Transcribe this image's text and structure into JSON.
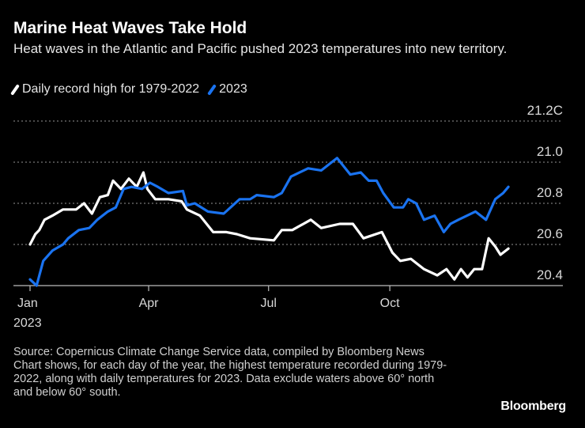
{
  "header": {
    "title": "Marine Heat Waves Take Hold",
    "subtitle": "Heat waves in the Atlantic and Pacific pushed 2023 temperatures into new territory."
  },
  "footer": {
    "source": "Source: Copernicus Climate Change Service data, compiled by Bloomberg News",
    "note": "Chart shows, for each day of the year, the highest temperature recorded during 1979-2022, along with daily temperatures for 2023. Data exclude waters above 60° north and below 60° south.",
    "logo": "Bloomberg"
  },
  "colors": {
    "background": "#000000",
    "record": "#ffffff",
    "year2023": "#1a73f0",
    "grid": "#777777"
  },
  "chart_data": {
    "type": "line",
    "title": "Marine Heat Waves Take Hold",
    "xlabel": "",
    "ylabel": "",
    "xlim": [
      "2023-01-01",
      "2023-12-31"
    ],
    "ylim": [
      20.4,
      21.2
    ],
    "grid": true,
    "legend_position": "top-left",
    "x_ticks": [
      {
        "date": "2023-01-01",
        "label": "Jan",
        "sublabel": "2023"
      },
      {
        "date": "2023-04-01",
        "label": "Apr"
      },
      {
        "date": "2023-07-01",
        "label": "Jul"
      },
      {
        "date": "2023-10-01",
        "label": "Oct"
      }
    ],
    "y_ticks": [
      {
        "value": 20.4,
        "label": "20.4"
      },
      {
        "value": 20.6,
        "label": "20.6"
      },
      {
        "value": 20.8,
        "label": "20.8"
      },
      {
        "value": 21.0,
        "label": "21.0"
      },
      {
        "value": 21.2,
        "label": "21.2C"
      }
    ],
    "series": [
      {
        "name": "Daily record high for 1979-2022",
        "color": "#ffffff",
        "points": [
          [
            "2023-01-01",
            20.6
          ],
          [
            "2023-01-05",
            20.65
          ],
          [
            "2023-01-08",
            20.67
          ],
          [
            "2023-01-12",
            20.72
          ],
          [
            "2023-01-18",
            20.74
          ],
          [
            "2023-01-26",
            20.77
          ],
          [
            "2023-02-05",
            20.77
          ],
          [
            "2023-02-11",
            20.8
          ],
          [
            "2023-02-17",
            20.75
          ],
          [
            "2023-02-23",
            20.83
          ],
          [
            "2023-03-01",
            20.84
          ],
          [
            "2023-03-05",
            20.91
          ],
          [
            "2023-03-11",
            20.87
          ],
          [
            "2023-03-17",
            20.92
          ],
          [
            "2023-03-23",
            20.88
          ],
          [
            "2023-03-28",
            20.95
          ],
          [
            "2023-03-31",
            20.87
          ],
          [
            "2023-04-06",
            20.82
          ],
          [
            "2023-04-16",
            20.82
          ],
          [
            "2023-04-26",
            20.81
          ],
          [
            "2023-04-30",
            20.77
          ],
          [
            "2023-05-10",
            20.74
          ],
          [
            "2023-05-20",
            20.66
          ],
          [
            "2023-05-30",
            20.66
          ],
          [
            "2023-06-07",
            20.65
          ],
          [
            "2023-06-17",
            20.63
          ],
          [
            "2023-07-05",
            20.62
          ],
          [
            "2023-07-11",
            20.67
          ],
          [
            "2023-07-19",
            20.67
          ],
          [
            "2023-08-02",
            20.72
          ],
          [
            "2023-08-10",
            20.68
          ],
          [
            "2023-08-24",
            20.7
          ],
          [
            "2023-09-03",
            20.7
          ],
          [
            "2023-09-11",
            20.63
          ],
          [
            "2023-09-25",
            20.66
          ],
          [
            "2023-10-03",
            20.56
          ],
          [
            "2023-10-09",
            20.52
          ],
          [
            "2023-10-17",
            20.53
          ],
          [
            "2023-10-27",
            20.48
          ],
          [
            "2023-11-06",
            20.45
          ],
          [
            "2023-11-13",
            20.48
          ],
          [
            "2023-11-19",
            20.43
          ],
          [
            "2023-11-24",
            20.48
          ],
          [
            "2023-11-29",
            20.44
          ],
          [
            "2023-12-04",
            20.48
          ],
          [
            "2023-12-10",
            20.48
          ],
          [
            "2023-12-15",
            20.63
          ],
          [
            "2023-12-20",
            20.59
          ],
          [
            "2023-12-24",
            20.55
          ],
          [
            "2023-12-30",
            20.58
          ]
        ]
      },
      {
        "name": "2023",
        "color": "#1a73f0",
        "points": [
          [
            "2023-01-01",
            20.43
          ],
          [
            "2023-01-06",
            20.4
          ],
          [
            "2023-01-11",
            20.52
          ],
          [
            "2023-01-18",
            20.57
          ],
          [
            "2023-01-26",
            20.6
          ],
          [
            "2023-01-30",
            20.63
          ],
          [
            "2023-02-07",
            20.67
          ],
          [
            "2023-02-15",
            20.68
          ],
          [
            "2023-02-21",
            20.72
          ],
          [
            "2023-03-01",
            20.76
          ],
          [
            "2023-03-07",
            20.78
          ],
          [
            "2023-03-13",
            20.87
          ],
          [
            "2023-03-19",
            20.88
          ],
          [
            "2023-03-27",
            20.87
          ],
          [
            "2023-04-02",
            20.9
          ],
          [
            "2023-04-08",
            20.88
          ],
          [
            "2023-04-16",
            20.85
          ],
          [
            "2023-04-27",
            20.86
          ],
          [
            "2023-04-30",
            20.79
          ],
          [
            "2023-05-06",
            20.8
          ],
          [
            "2023-05-16",
            20.76
          ],
          [
            "2023-05-28",
            20.75
          ],
          [
            "2023-06-09",
            20.82
          ],
          [
            "2023-06-17",
            20.82
          ],
          [
            "2023-06-22",
            20.84
          ],
          [
            "2023-07-05",
            20.83
          ],
          [
            "2023-07-11",
            20.85
          ],
          [
            "2023-07-18",
            20.93
          ],
          [
            "2023-07-31",
            20.97
          ],
          [
            "2023-08-10",
            20.96
          ],
          [
            "2023-08-22",
            21.02
          ],
          [
            "2023-09-01",
            20.94
          ],
          [
            "2023-09-09",
            20.95
          ],
          [
            "2023-09-15",
            20.91
          ],
          [
            "2023-09-21",
            20.91
          ],
          [
            "2023-09-26",
            20.85
          ],
          [
            "2023-10-04",
            20.78
          ],
          [
            "2023-10-11",
            20.78
          ],
          [
            "2023-10-15",
            20.82
          ],
          [
            "2023-10-21",
            20.8
          ],
          [
            "2023-10-27",
            20.72
          ],
          [
            "2023-11-04",
            20.74
          ],
          [
            "2023-11-11",
            20.66
          ],
          [
            "2023-11-16",
            20.7
          ],
          [
            "2023-11-22",
            20.72
          ],
          [
            "2023-12-05",
            20.76
          ],
          [
            "2023-12-13",
            20.72
          ],
          [
            "2023-12-20",
            20.82
          ],
          [
            "2023-12-26",
            20.85
          ],
          [
            "2023-12-30",
            20.88
          ]
        ]
      }
    ]
  }
}
